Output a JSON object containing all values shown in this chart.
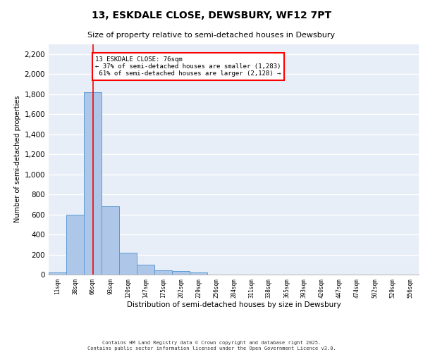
{
  "title1": "13, ESKDALE CLOSE, DEWSBURY, WF12 7PT",
  "title2": "Size of property relative to semi-detached houses in Dewsbury",
  "xlabel": "Distribution of semi-detached houses by size in Dewsbury",
  "ylabel": "Number of semi-detached properties",
  "bin_labels": [
    "11sqm",
    "38sqm",
    "66sqm",
    "93sqm",
    "120sqm",
    "147sqm",
    "175sqm",
    "202sqm",
    "229sqm",
    "256sqm",
    "284sqm",
    "311sqm",
    "338sqm",
    "365sqm",
    "393sqm",
    "420sqm",
    "447sqm",
    "474sqm",
    "502sqm",
    "529sqm",
    "556sqm"
  ],
  "bar_values": [
    20,
    600,
    1820,
    680,
    215,
    95,
    40,
    35,
    20,
    0,
    0,
    0,
    0,
    0,
    0,
    0,
    0,
    0,
    0,
    0,
    0
  ],
  "bar_color": "#aec6e8",
  "bar_edge_color": "#5b9bd5",
  "red_line_x": 2,
  "annotation_text": "13 ESKDALE CLOSE: 76sqm\n← 37% of semi-detached houses are smaller (1,283)\n 61% of semi-detached houses are larger (2,128) →",
  "annotation_box_color": "white",
  "annotation_box_edge_color": "red",
  "ylim": [
    0,
    2300
  ],
  "yticks": [
    0,
    200,
    400,
    600,
    800,
    1000,
    1200,
    1400,
    1600,
    1800,
    2000,
    2200
  ],
  "background_color": "#e8eef7",
  "grid_color": "white",
  "footer1": "Contains HM Land Registry data © Crown copyright and database right 2025.",
  "footer2": "Contains public sector information licensed under the Open Government Licence v3.0."
}
